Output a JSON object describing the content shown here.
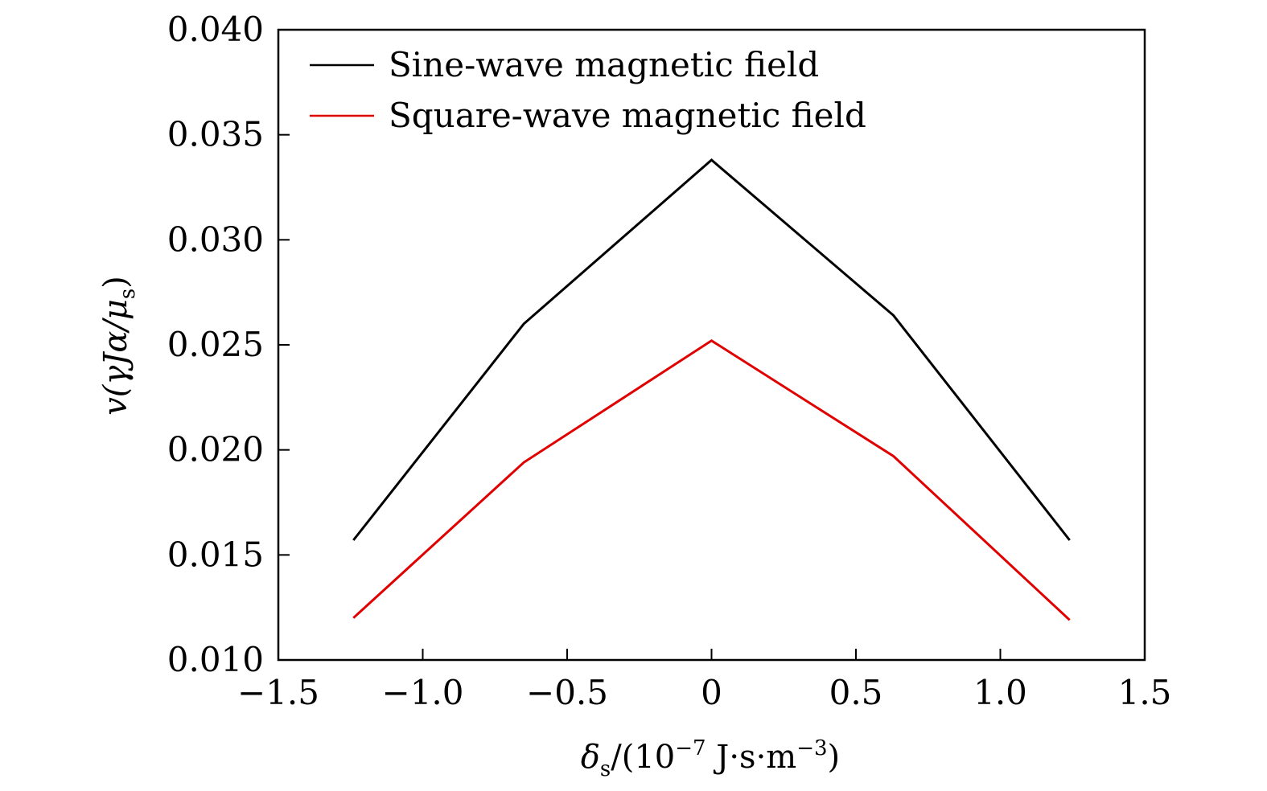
{
  "chart_data": {
    "type": "line",
    "title": "",
    "x": [
      -1.24,
      -0.65,
      0,
      0.63,
      1.24
    ],
    "series": [
      {
        "name": "Sine-wave magnetic field",
        "color": "#000000",
        "values": [
          0.0157,
          0.026,
          0.0338,
          0.0264,
          0.0157
        ]
      },
      {
        "name": "Square-wave magnetic field",
        "color": "#e00000",
        "values": [
          0.012,
          0.0194,
          0.0252,
          0.0197,
          0.0119
        ]
      }
    ],
    "xlim": [
      -1.5,
      1.5
    ],
    "ylim": [
      0.01,
      0.04
    ],
    "xticks": [
      -1.5,
      -1.0,
      -0.5,
      0,
      0.5,
      1.0,
      1.5
    ],
    "xtick_labels": [
      "−1.5",
      "−1.0",
      "−0.5",
      "0",
      "0.5",
      "1.0",
      "1.5"
    ],
    "yticks": [
      0.01,
      0.015,
      0.02,
      0.025,
      0.03,
      0.035,
      0.04
    ],
    "ytick_labels": [
      "0.010",
      "0.015",
      "0.020",
      "0.025",
      "0.030",
      "0.035",
      "0.040"
    ],
    "xlabel": {
      "main": "δ",
      "sub": "s",
      "middle": "/(10",
      "sup1": "−7",
      "unit": " J·s·m",
      "sup2": "−3",
      "end": ")"
    },
    "ylabel": {
      "main": "v(γJα/μ",
      "sub": "s",
      "end": ")"
    },
    "legend_position": "top-left",
    "grid": false
  }
}
